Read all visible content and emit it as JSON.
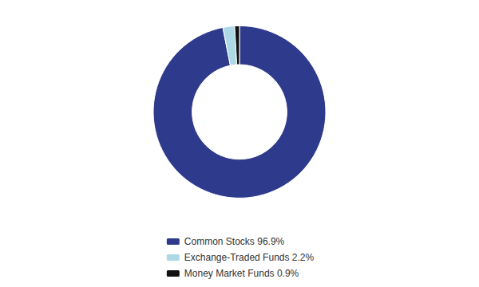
{
  "chart_data": {
    "type": "donut",
    "categories": [
      "Common Stocks 96.9%",
      "Exchange-Traded Funds 2.2%",
      "Money Market Funds 0.9%"
    ],
    "values": [
      96.9,
      2.2,
      0.9
    ],
    "colors": [
      "#2e3a8c",
      "#add8e6",
      "#111111"
    ],
    "legend": "bottom"
  }
}
